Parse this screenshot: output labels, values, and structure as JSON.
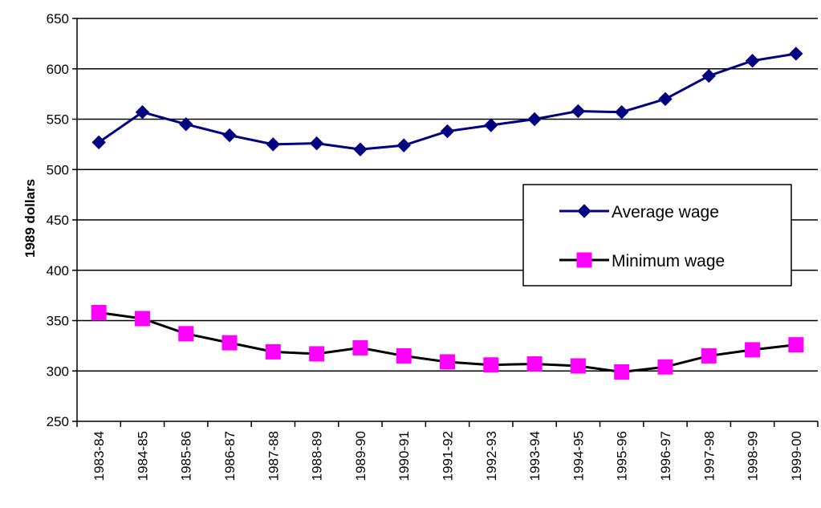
{
  "chart_data": {
    "type": "line",
    "title": "",
    "xlabel": "",
    "ylabel": "1989 dollars",
    "ylim": [
      250,
      650
    ],
    "yticks": [
      250,
      300,
      350,
      400,
      450,
      500,
      550,
      600,
      650
    ],
    "grid": "horizontal",
    "legend_position": "right",
    "categories": [
      "1983-84",
      "1984-85",
      "1985-86",
      "1986-87",
      "1987-88",
      "1988-89",
      "1989-90",
      "1990-91",
      "1991-92",
      "1992-93",
      "1993-94",
      "1994-95",
      "1995-96",
      "1996-97",
      "1997-98",
      "1998-99",
      "1999-00"
    ],
    "series": [
      {
        "name": "Average wage",
        "line_color": "#000080",
        "marker": "diamond",
        "marker_color": "#000080",
        "values": [
          527,
          557,
          545,
          534,
          525,
          526,
          520,
          524,
          538,
          544,
          550,
          558,
          557,
          570,
          593,
          608,
          615
        ]
      },
      {
        "name": "Minimum wage",
        "line_color": "#000000",
        "marker": "square",
        "marker_color": "#ff00ff",
        "values": [
          358,
          352,
          337,
          328,
          319,
          317,
          323,
          315,
          309,
          306,
          307,
          305,
          299,
          304,
          315,
          321,
          326
        ]
      }
    ]
  }
}
